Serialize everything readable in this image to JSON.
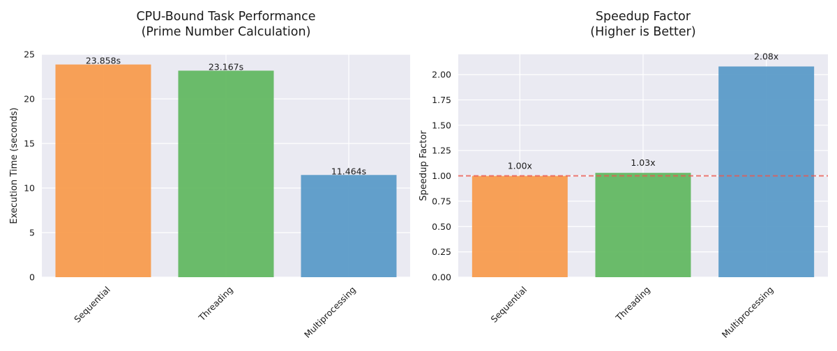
{
  "chart_data": [
    {
      "type": "bar",
      "title": [
        "CPU-Bound Task Performance",
        "(Prime Number Calculation)"
      ],
      "xlabel": "",
      "ylabel": "Execution Time (seconds)",
      "categories": [
        "Sequential",
        "Threading",
        "Multiprocessing"
      ],
      "values": [
        23.858,
        23.167,
        11.464
      ],
      "value_labels": [
        "23.858s",
        "23.167s",
        "11.464s"
      ],
      "colors": [
        "#f89c4e",
        "#63b862",
        "#5b9bc8"
      ],
      "ylim": [
        0,
        25
      ],
      "yticks": [
        0,
        5,
        10,
        15,
        20,
        25
      ],
      "ytick_labels": [
        "0",
        "5",
        "10",
        "15",
        "20",
        "25"
      ],
      "grid": true,
      "label_position": "on-bar-top"
    },
    {
      "type": "bar",
      "title": [
        "Speedup Factor",
        "(Higher is Better)"
      ],
      "xlabel": "",
      "ylabel": "Speedup Factor",
      "categories": [
        "Sequential",
        "Threading",
        "Multiprocessing"
      ],
      "values": [
        1.0,
        1.03,
        2.08
      ],
      "value_labels": [
        "1.00x",
        "1.03x",
        "2.08x"
      ],
      "colors": [
        "#f89c4e",
        "#63b862",
        "#5b9bc8"
      ],
      "ylim": [
        0,
        2.2
      ],
      "yticks": [
        0,
        0.25,
        0.5,
        0.75,
        1.0,
        1.25,
        1.5,
        1.75,
        2.0
      ],
      "ytick_labels": [
        "0.00",
        "0.25",
        "0.50",
        "0.75",
        "1.00",
        "1.25",
        "1.50",
        "1.75",
        "2.00"
      ],
      "grid": true,
      "label_position": "above-bar",
      "reference_line": {
        "y": 1.0,
        "color": "#e8574f",
        "style": "dashed"
      }
    }
  ]
}
